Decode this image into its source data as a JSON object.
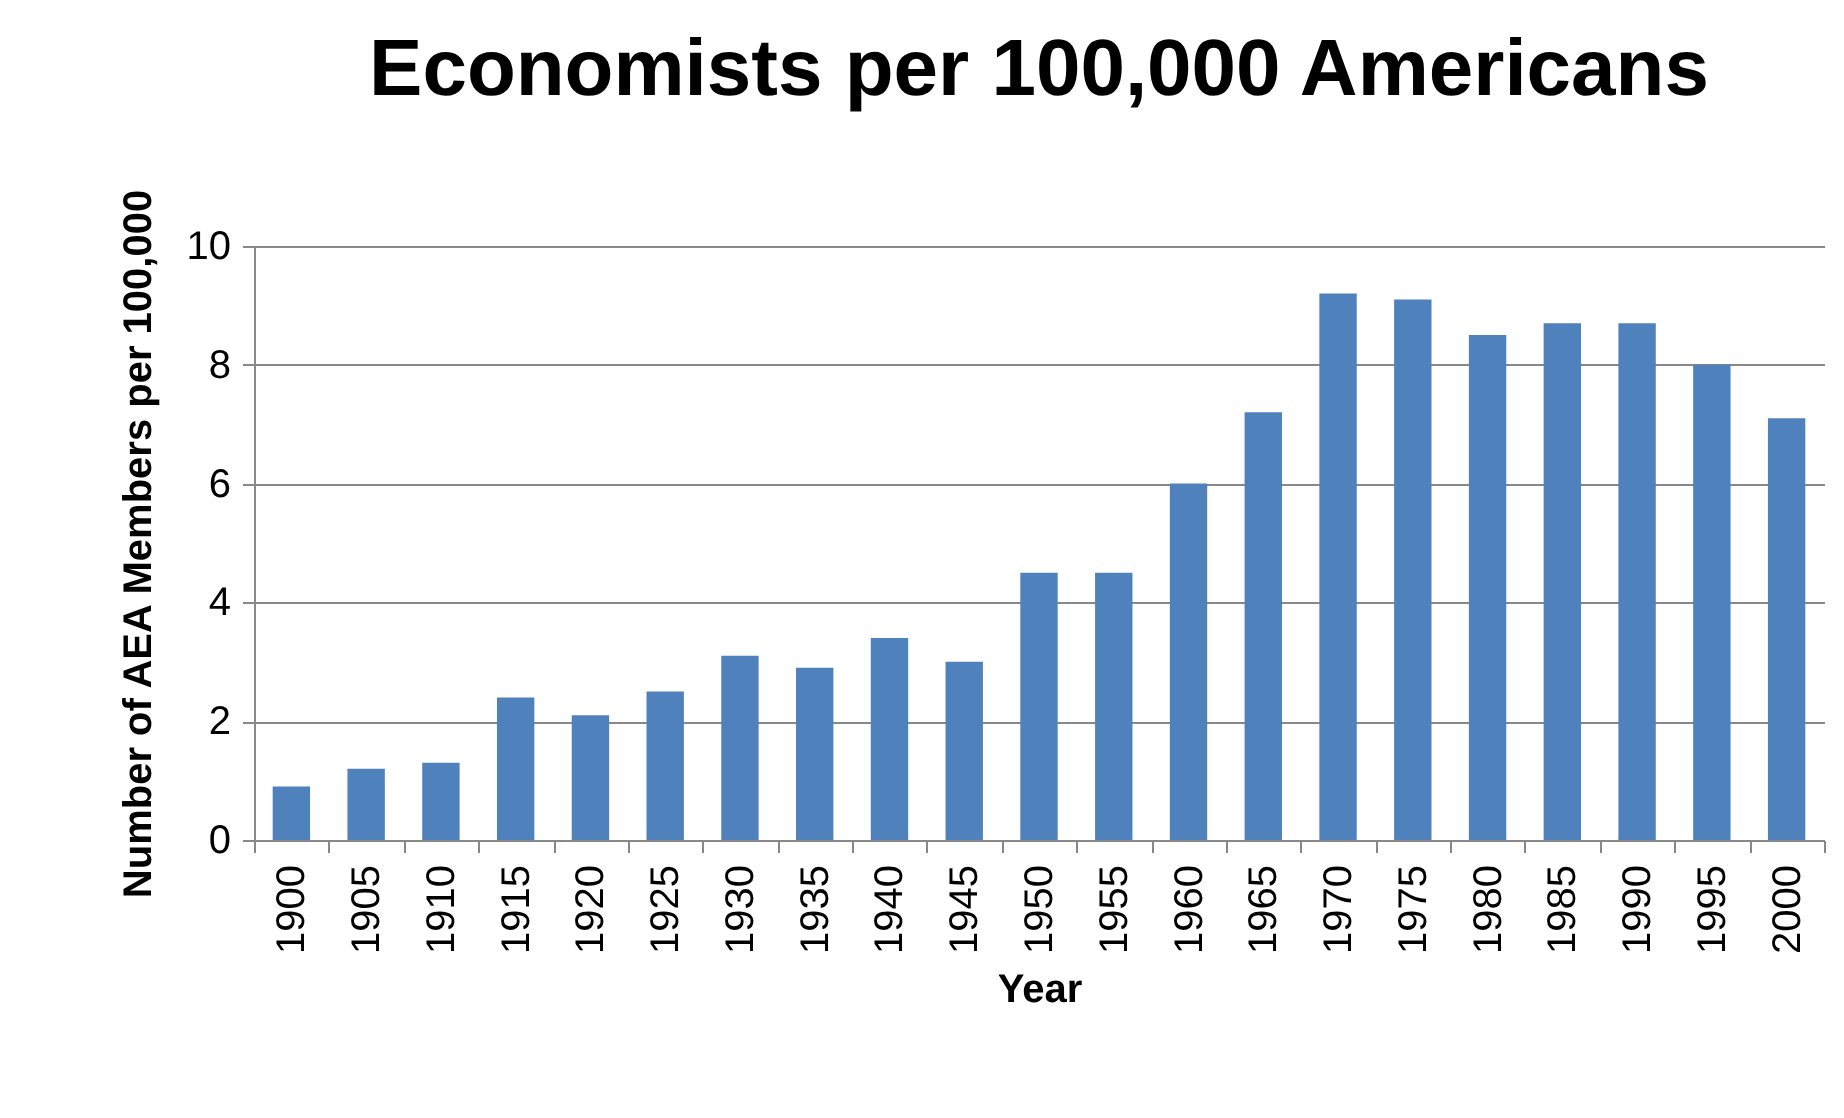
{
  "chart_data": {
    "type": "bar",
    "title": "Economists per 100,000 Americans",
    "xlabel": "Year",
    "ylabel": "Number of AEA Members per 100,000",
    "categories": [
      "1900",
      "1905",
      "1910",
      "1915",
      "1920",
      "1925",
      "1930",
      "1935",
      "1940",
      "1945",
      "1950",
      "1955",
      "1960",
      "1965",
      "1970",
      "1975",
      "1980",
      "1985",
      "1990",
      "1995",
      "2000"
    ],
    "values": [
      0.9,
      1.2,
      1.3,
      2.4,
      2.1,
      2.5,
      3.1,
      2.9,
      3.4,
      3.0,
      4.5,
      4.5,
      6.0,
      7.2,
      9.2,
      9.1,
      8.5,
      8.7,
      8.7,
      8.0,
      7.1
    ],
    "color": "#4f81bd",
    "ylim": [
      0,
      10
    ],
    "yticks": [
      0,
      2,
      4,
      6,
      8,
      10
    ],
    "grid": "y"
  }
}
